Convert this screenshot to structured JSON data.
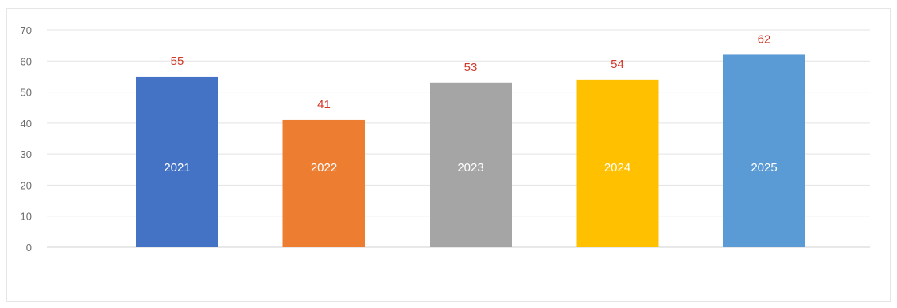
{
  "chart_data": {
    "type": "bar",
    "categories": [
      "2021",
      "2022",
      "2023",
      "2024",
      "2025"
    ],
    "values": [
      55,
      41,
      53,
      54,
      62
    ],
    "data_labels": [
      "55",
      "41",
      "53",
      "54",
      "62"
    ],
    "colors": [
      "#4472c4",
      "#ed7d31",
      "#a5a5a5",
      "#ffc000",
      "#5b9bd5"
    ],
    "value_label_color": "#d03a2a",
    "ylim": [
      0,
      70
    ],
    "yticks": [
      "0",
      "10",
      "20",
      "30",
      "40",
      "50",
      "60",
      "70"
    ],
    "category_labels_inside_bars": true,
    "grid": true,
    "legend": false
  }
}
